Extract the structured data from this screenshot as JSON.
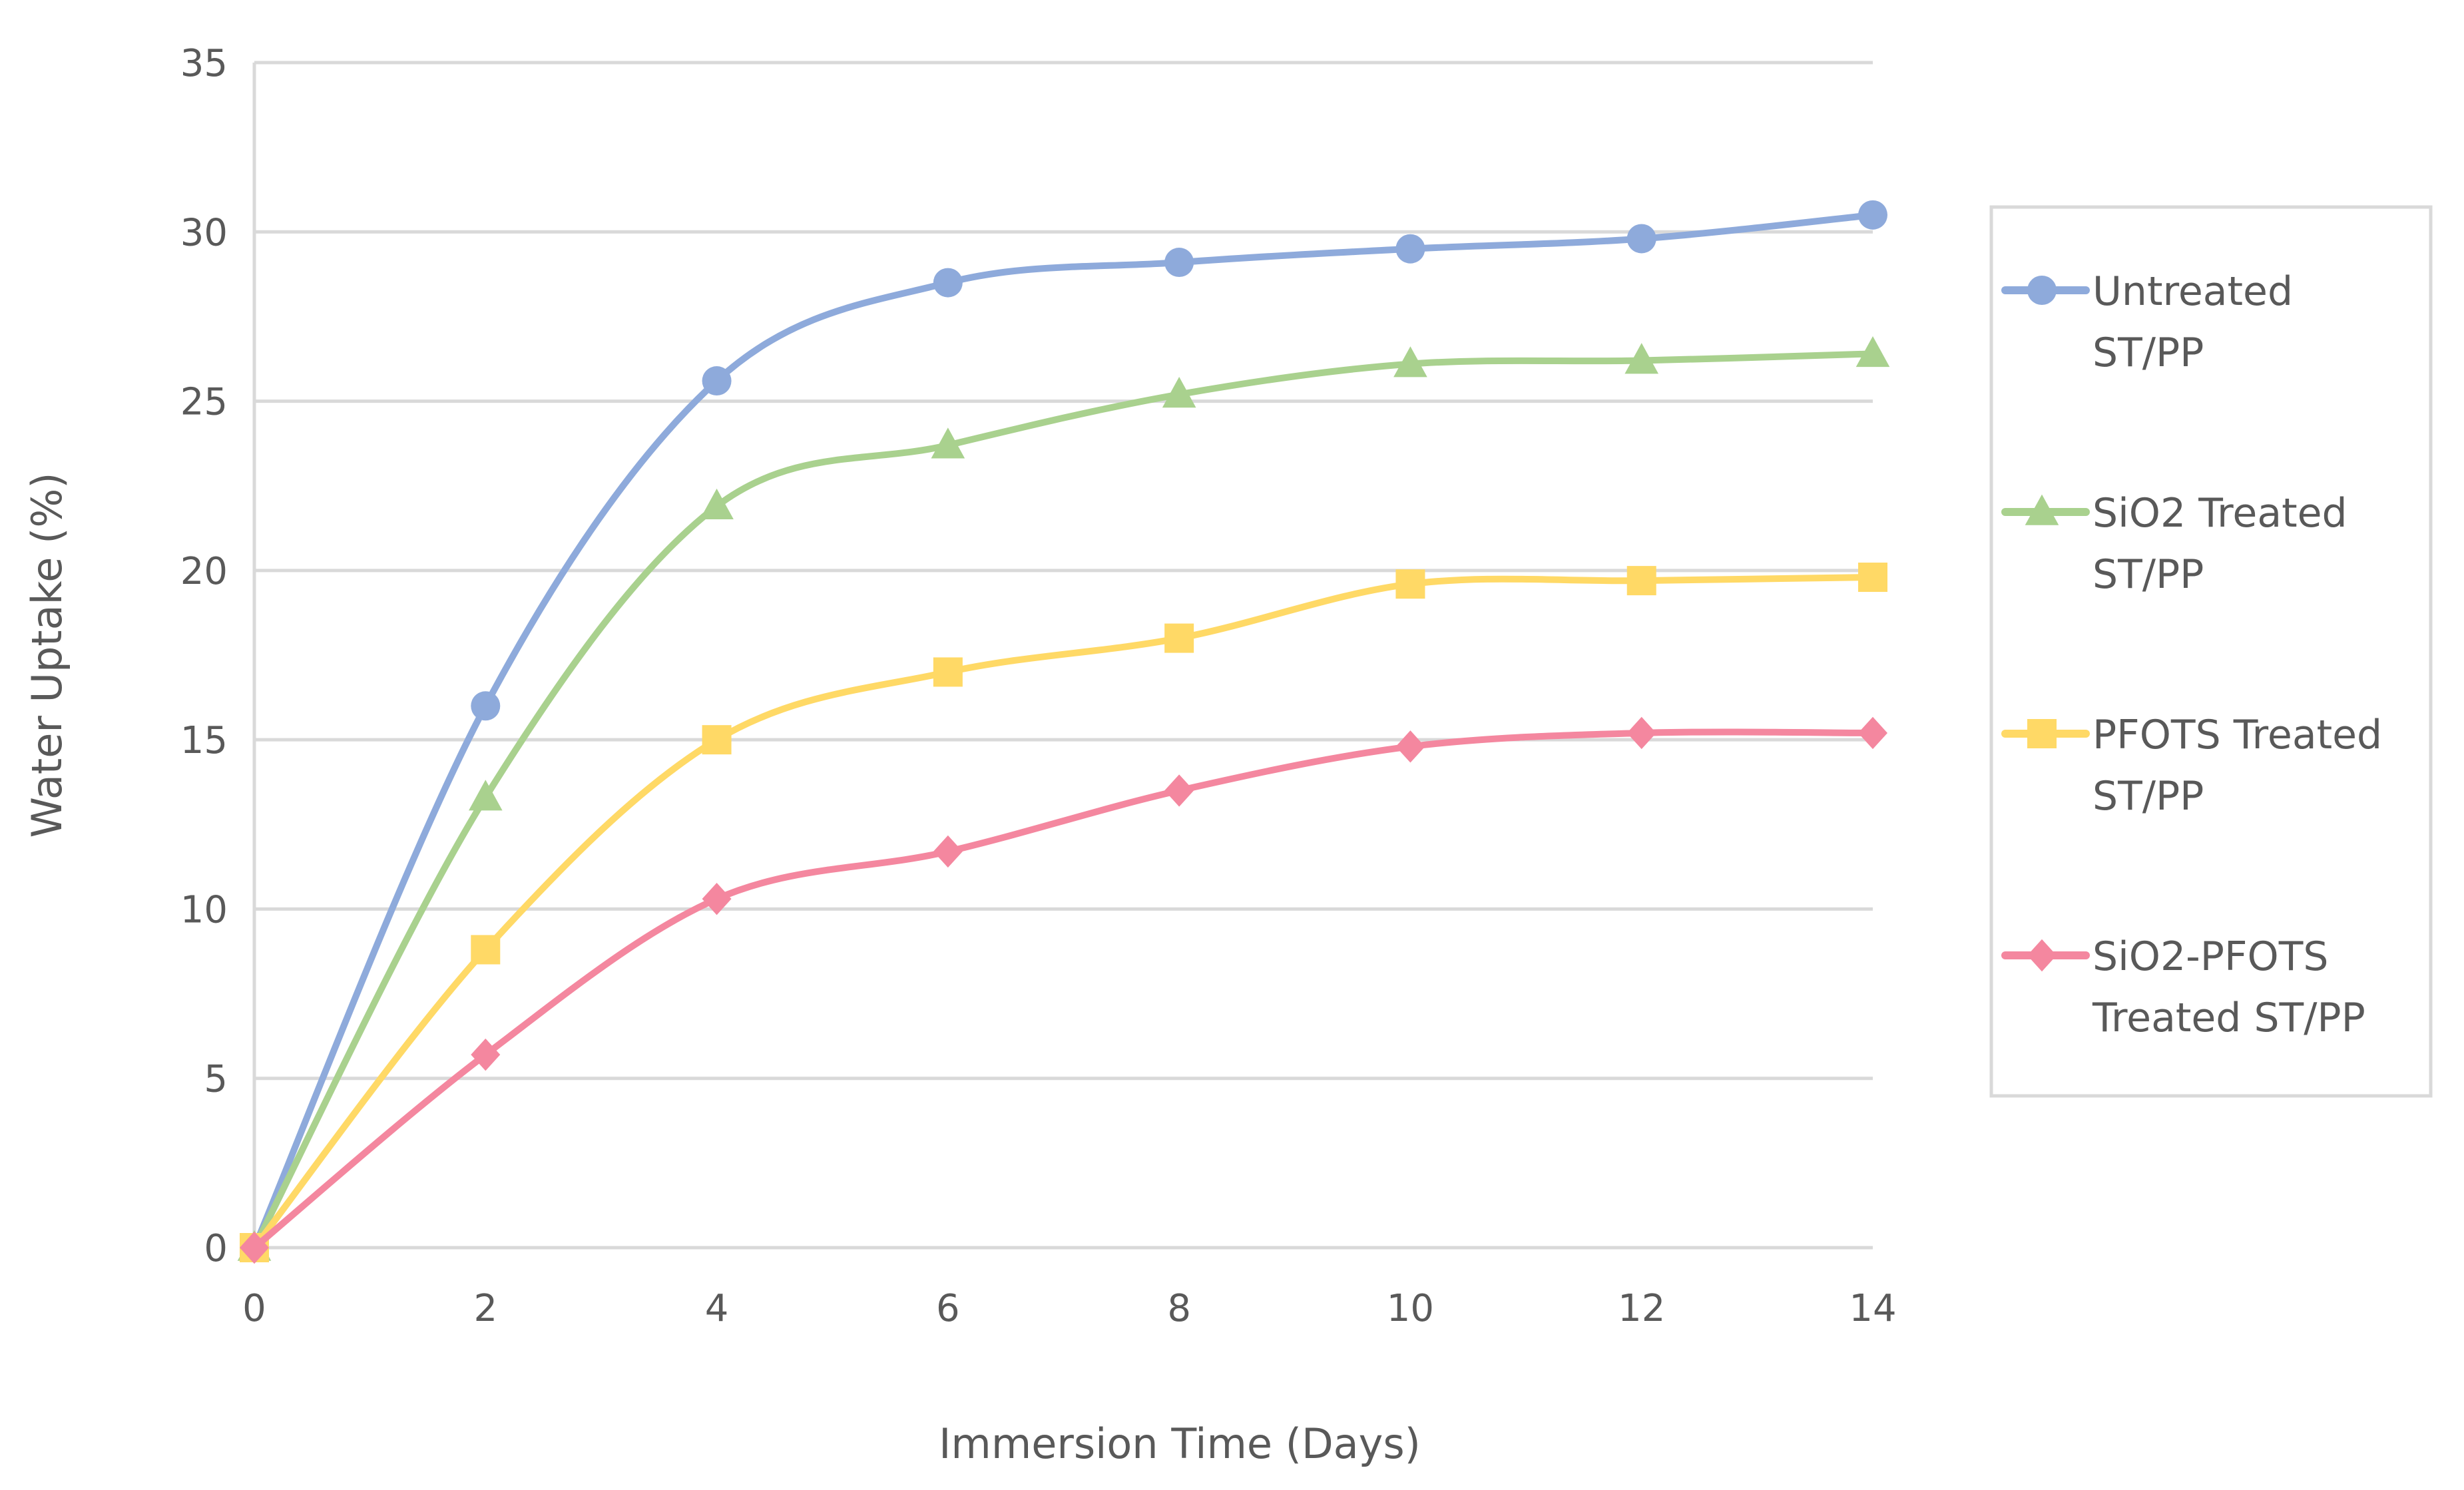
{
  "chart_data": {
    "type": "line",
    "title": "",
    "xlabel": "Immersion Time (Days)",
    "ylabel": "Water Uptake (%)",
    "x": [
      0,
      2,
      4,
      6,
      8,
      10,
      12,
      14
    ],
    "xlim": [
      0,
      14
    ],
    "ylim": [
      0,
      35
    ],
    "xticks": [
      "0",
      "2",
      "4",
      "6",
      "8",
      "10",
      "12",
      "14"
    ],
    "yticks": [
      "0",
      "5",
      "10",
      "15",
      "20",
      "25",
      "30",
      "35"
    ],
    "grid": "horizontal",
    "smooth": true,
    "legend_position": "right",
    "series": [
      {
        "name": "Untreated ST/PP",
        "label_lines": [
          "Untreated",
          "ST/PP"
        ],
        "color": "#8eaadb",
        "marker": "circle",
        "values": [
          0,
          16.0,
          25.6,
          28.5,
          29.1,
          29.5,
          29.8,
          30.5
        ]
      },
      {
        "name": "SiO2 Treated ST/PP",
        "label_lines": [
          "SiO2 Treated",
          "ST/PP"
        ],
        "color": "#a9d18e",
        "marker": "triangle",
        "values": [
          0,
          13.3,
          21.9,
          23.7,
          25.2,
          26.1,
          26.2,
          26.4
        ]
      },
      {
        "name": "PFOTS Treated ST/PP",
        "label_lines": [
          "PFOTS Treated",
          "ST/PP"
        ],
        "color": "#ffd966",
        "marker": "square",
        "values": [
          0,
          8.8,
          15.0,
          17.0,
          18.0,
          19.6,
          19.7,
          19.8
        ]
      },
      {
        "name": "SiO2-PFOTS Treated ST/PP",
        "label_lines": [
          "SiO2-PFOTS",
          "Treated ST/PP"
        ],
        "color": "#f4879f",
        "marker": "diamond",
        "values": [
          0,
          5.7,
          10.3,
          11.7,
          13.5,
          14.8,
          15.2,
          15.2
        ]
      }
    ]
  }
}
